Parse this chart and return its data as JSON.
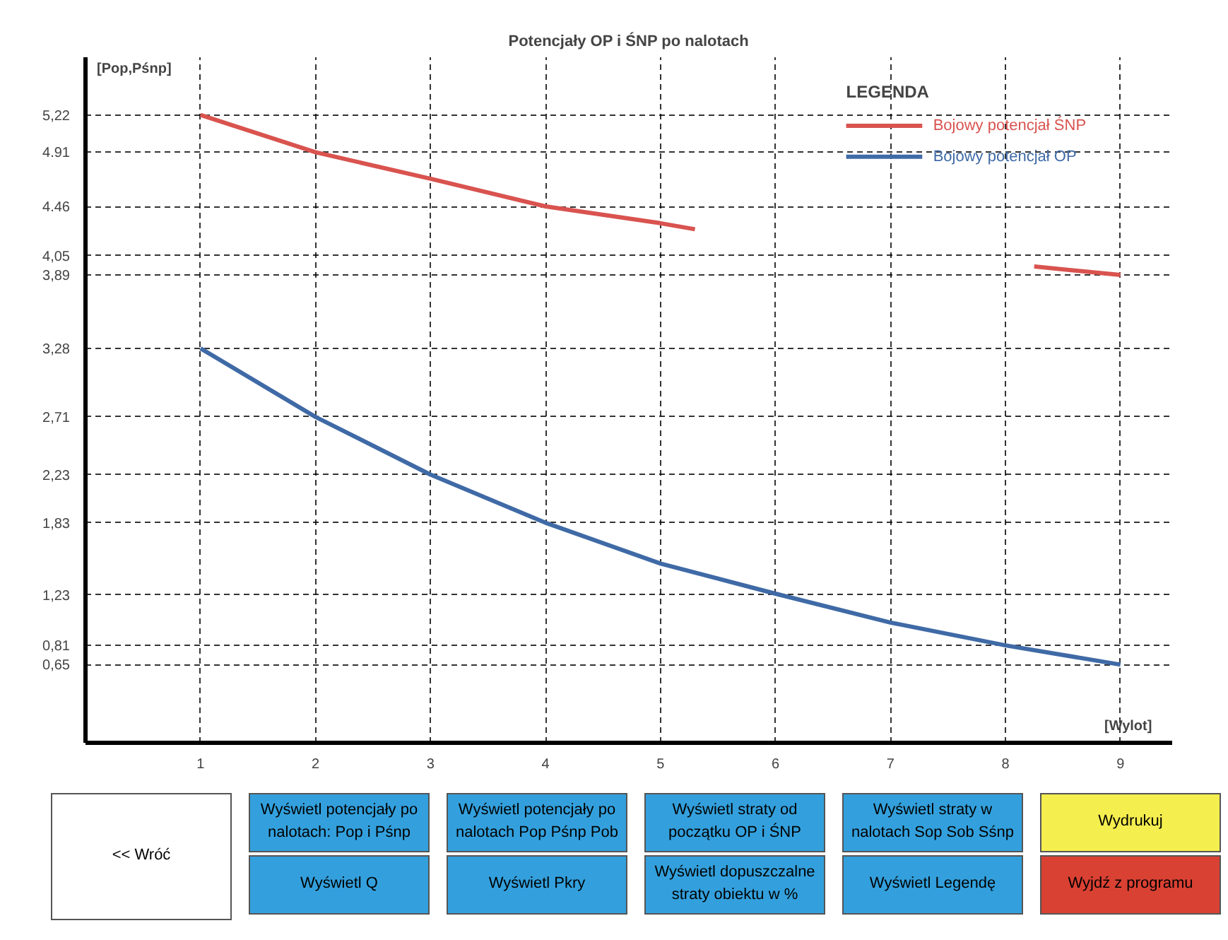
{
  "chart_data": {
    "type": "line",
    "title": "Potencjały OP i ŚNP po nalotach",
    "xlabel": "[Wylot]",
    "ylabel": "[Pop,Pśnp]",
    "legend_title": "LEGENDA",
    "legend": "top right",
    "grid": true,
    "line_style": "solid",
    "marker": "none",
    "xlim": [
      0,
      9.45
    ],
    "ylim": [
      0,
      5.7
    ],
    "xticks": [
      1,
      2,
      3,
      4,
      5,
      6,
      7,
      8,
      9
    ],
    "yticks": [
      {
        "value": 5.22,
        "label": "5,22"
      },
      {
        "value": 4.91,
        "label": "4.91"
      },
      {
        "value": 4.46,
        "label": "4.46"
      },
      {
        "value": 4.05,
        "label": "4,05"
      },
      {
        "value": 3.89,
        "label": "3,89"
      },
      {
        "value": 3.28,
        "label": "3,28"
      },
      {
        "value": 2.71,
        "label": "2,71"
      },
      {
        "value": 2.23,
        "label": "2,23"
      },
      {
        "value": 1.83,
        "label": "1,83"
      },
      {
        "value": 1.23,
        "label": "1,23"
      },
      {
        "value": 0.81,
        "label": "0,81"
      },
      {
        "value": 0.65,
        "label": "0,65"
      }
    ],
    "x": [
      1,
      2,
      3,
      4,
      5,
      6,
      7,
      8,
      9
    ],
    "series": [
      {
        "name": "Bojowy potencjał ŚNP",
        "color": "#d9534f",
        "x": [
          1,
          2,
          3,
          4,
          5,
          5.3,
          6,
          8.25,
          9
        ],
        "values": [
          5.22,
          4.91,
          4.69,
          4.46,
          4.32,
          4.27,
          null,
          3.96,
          3.89
        ]
      },
      {
        "name": "Bojowy potencjał OP",
        "color": "#3f6aa6",
        "values": [
          3.28,
          2.71,
          2.23,
          1.83,
          1.49,
          1.24,
          1.0,
          0.81,
          0.65
        ]
      }
    ],
    "annotations": [
      "<< Wróć",
      "Wyświetl potencjały po nalotach: Pop i Pśnp",
      "Wyświetl Q",
      "Wyświetl potencjały po nalotach Pop Pśnp Pob",
      "Wyświetl Pkry",
      "Wyświetl straty od początku OP i ŚNP",
      "Wyświetl dopuszczalne straty obiektu w %",
      "Wyświetl straty w nalotach Sop Sob Sśnp",
      "Wyświetl Legendę",
      "Wydrukuj",
      "Wyjdź z programu"
    ]
  }
}
